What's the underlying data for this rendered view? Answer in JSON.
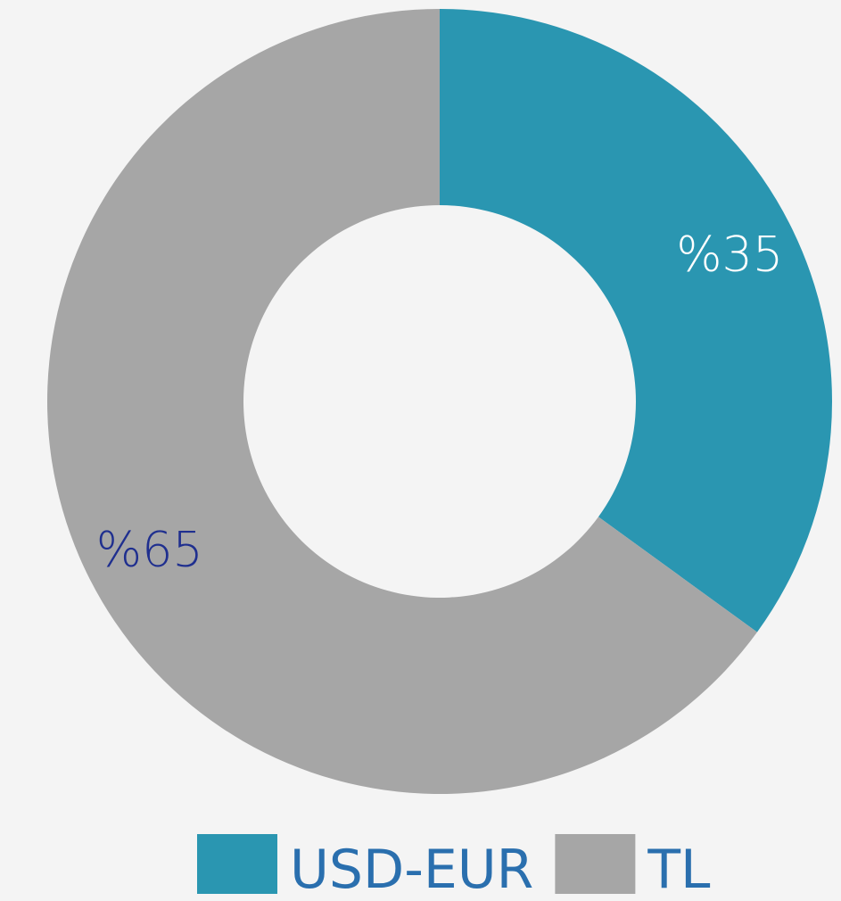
{
  "chart_data": {
    "type": "donut",
    "categories": [
      "USD-EUR",
      "TL"
    ],
    "values": [
      35,
      65
    ],
    "value_labels": [
      "%35",
      "%65"
    ],
    "colors": [
      "#2a96b1",
      "#a6a6a6"
    ],
    "label_colors": [
      "#ffffff",
      "#1f2f8f"
    ],
    "legend": "bottom"
  }
}
